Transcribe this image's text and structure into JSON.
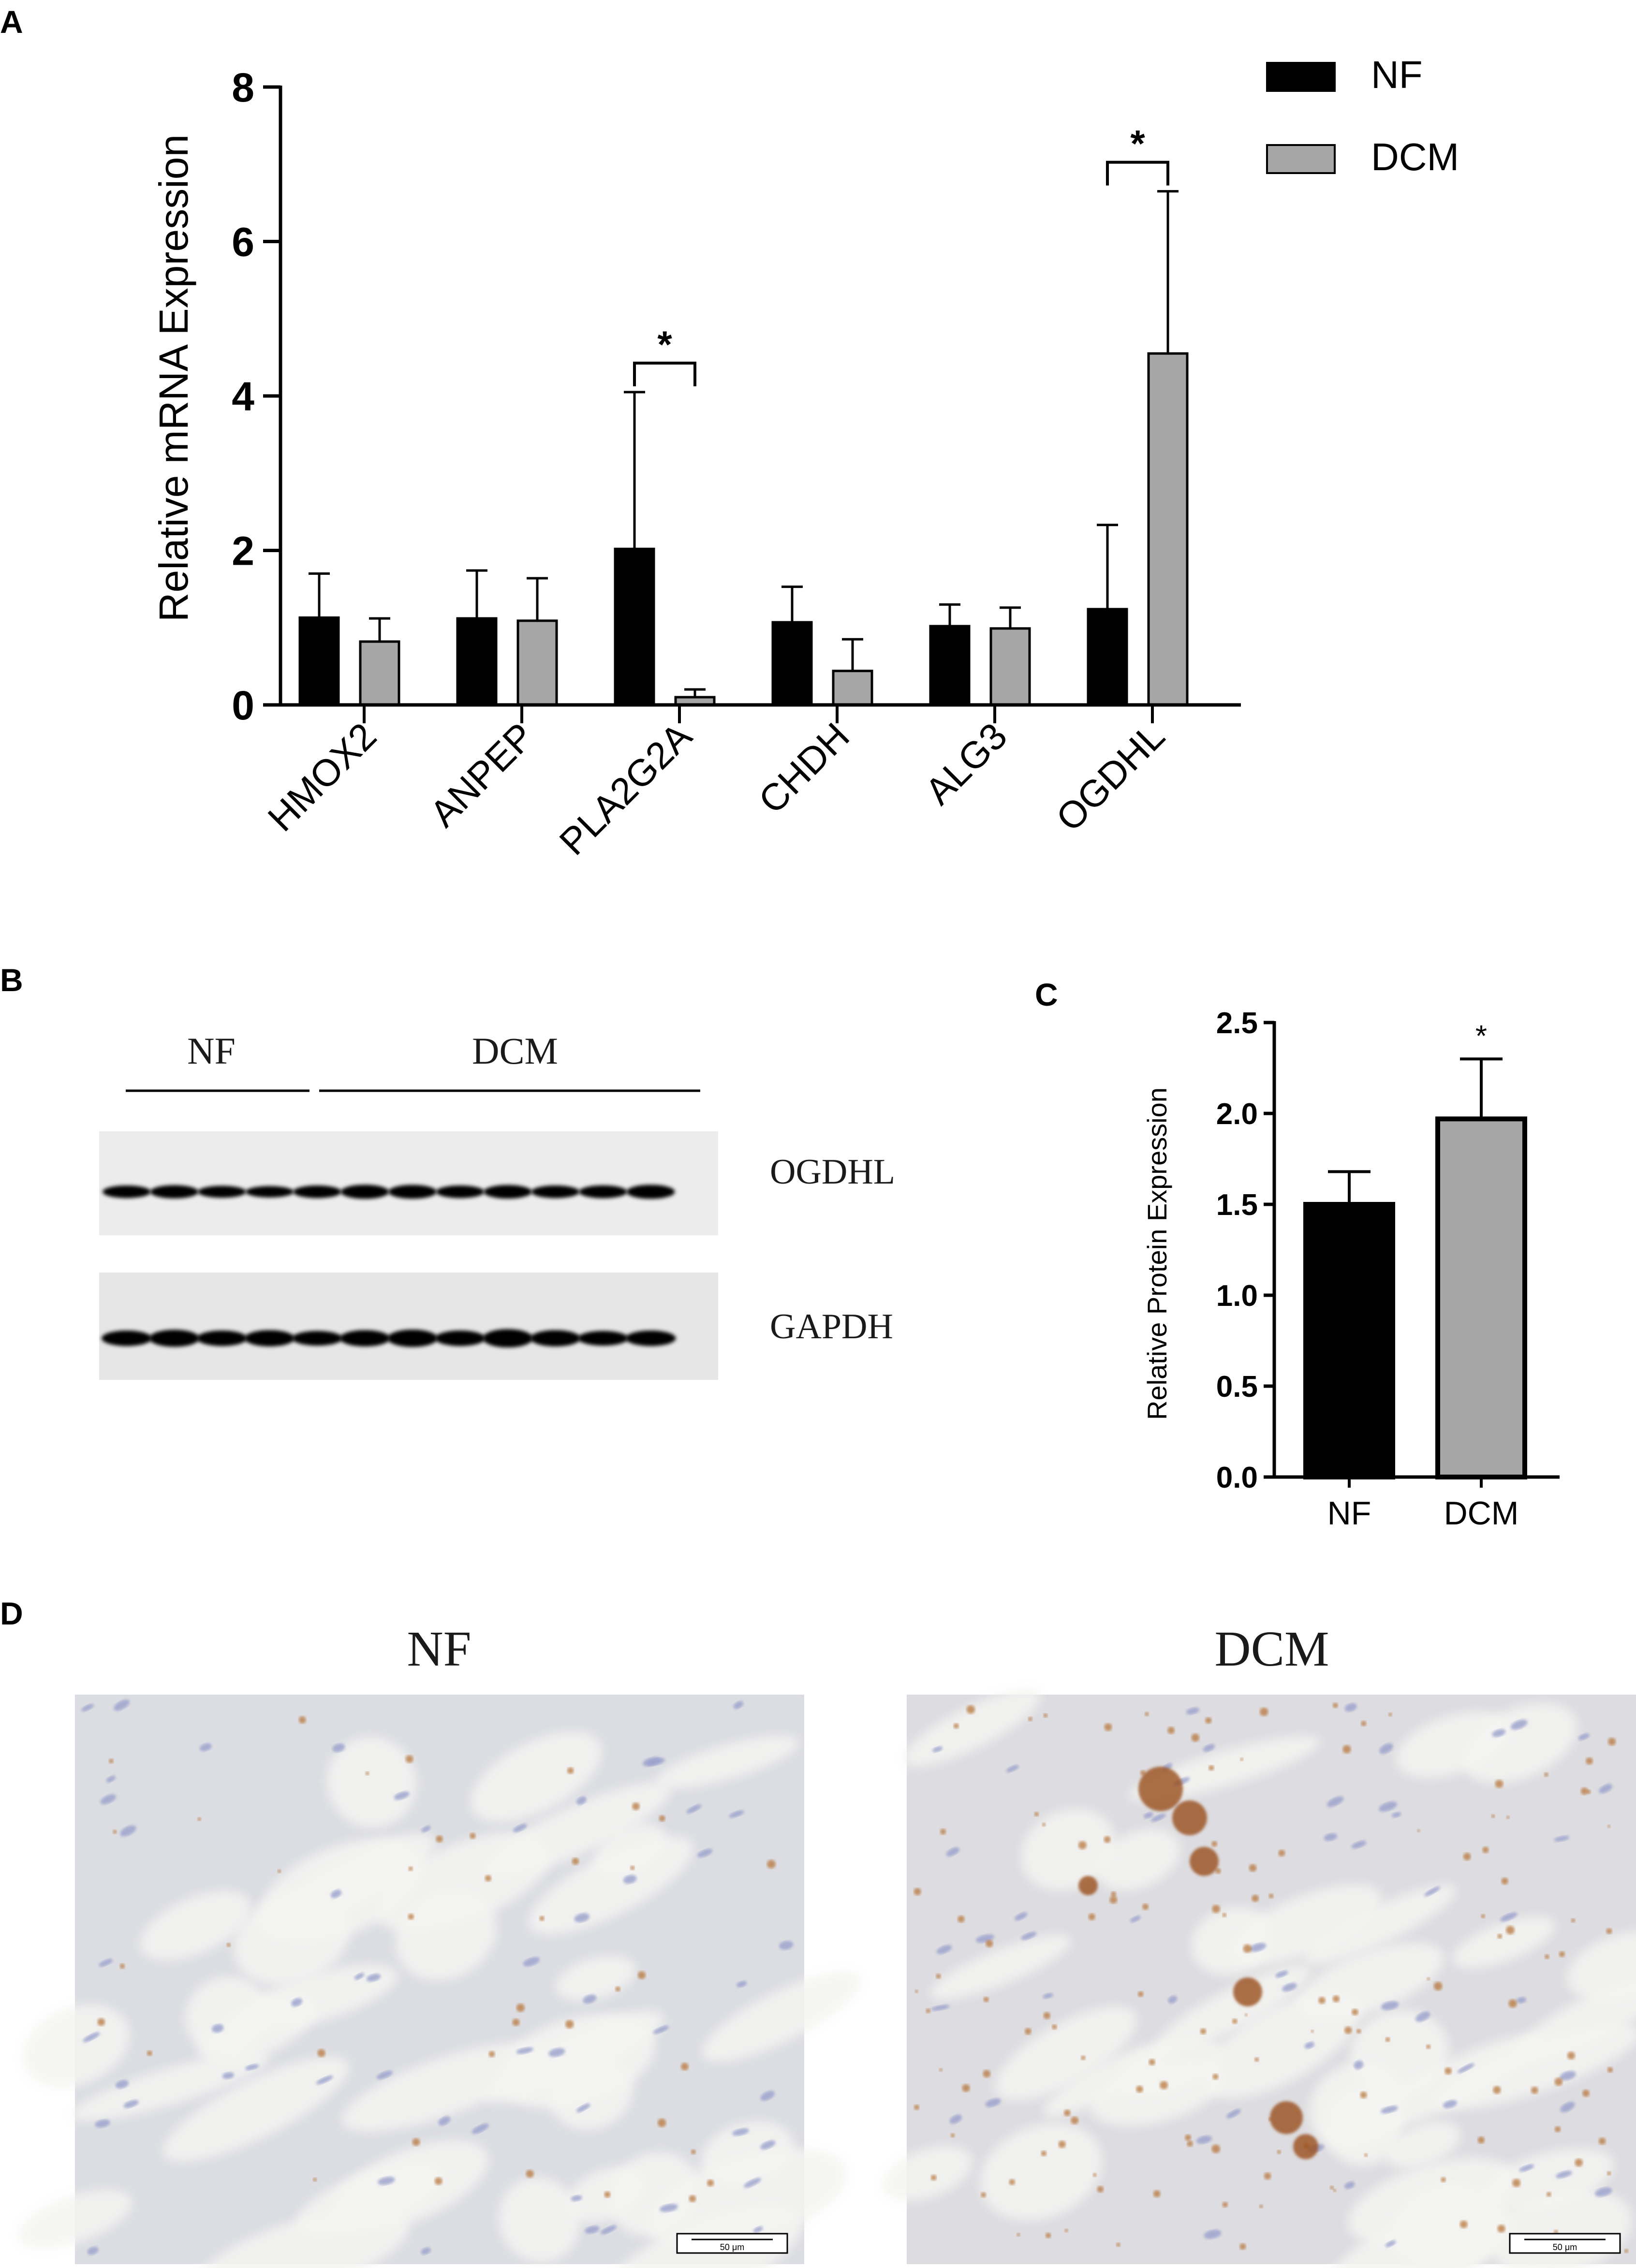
{
  "panels": {
    "a_letter": "A",
    "b_letter": "B",
    "c_letter": "C",
    "d_letter": "D"
  },
  "chart_data": [
    {
      "type": "bar",
      "panel": "A",
      "ylabel": "Relative mRNA Expression",
      "ylim": [
        0,
        8
      ],
      "yticks": [
        "0",
        "2",
        "4",
        "6",
        "8"
      ],
      "categories": [
        "HMOX2",
        "ANPEP",
        "PLA2G2A",
        "CHDH",
        "ALG3",
        "OGDHL"
      ],
      "series": [
        {
          "name": "NF",
          "color": "#000000",
          "values": [
            1.13,
            1.12,
            2.02,
            1.07,
            1.02,
            1.24
          ],
          "errors": [
            0.57,
            0.62,
            2.03,
            0.46,
            0.28,
            1.09
          ]
        },
        {
          "name": "DCM",
          "color": "#a6a6a6",
          "values": [
            0.82,
            1.09,
            0.1,
            0.44,
            0.99,
            4.55
          ],
          "errors": [
            0.3,
            0.55,
            0.1,
            0.41,
            0.27,
            2.1
          ]
        }
      ],
      "significance": [
        {
          "category": "PLA2G2A",
          "label": "*"
        },
        {
          "category": "OGDHL",
          "label": "*"
        }
      ],
      "legend_position": "top-right",
      "grid": false
    },
    {
      "type": "bar",
      "panel": "C",
      "ylabel": "Relative Protein Expression",
      "ylim": [
        0,
        2.5
      ],
      "yticks": [
        "0.0",
        "0.5",
        "1.0",
        "1.5",
        "2.0",
        "2.5"
      ],
      "categories": [
        "NF",
        "DCM"
      ],
      "values": [
        1.5,
        1.97
      ],
      "errors": [
        0.18,
        0.33
      ],
      "colors": [
        "#000000",
        "#a6a6a6"
      ],
      "significance": [
        {
          "category": "DCM",
          "label": "*"
        }
      ],
      "grid": false
    }
  ],
  "blot": {
    "group_nf": "NF",
    "group_dcm": "DCM",
    "band_ogdhl": "OGDHL",
    "band_gapdh": "GAPDH",
    "lanes_nf": 4,
    "lanes_dcm": 8
  },
  "histology": {
    "title_nf": "NF",
    "title_dcm": "DCM",
    "scale_label": "50 μm"
  }
}
